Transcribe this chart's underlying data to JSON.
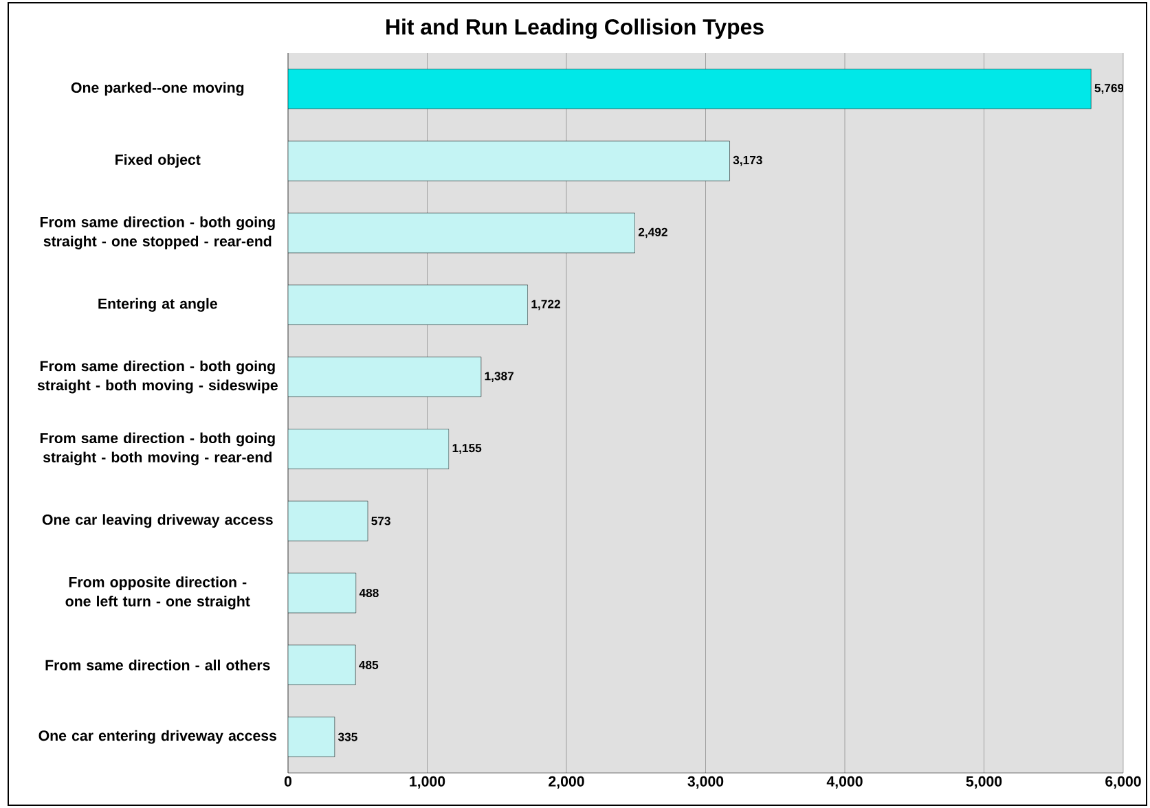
{
  "chart_data": {
    "type": "bar",
    "orientation": "horizontal",
    "title": "Hit and Run Leading Collision Types",
    "categories": [
      "One parked--one moving",
      "Fixed object",
      "From same direction - both going straight - one stopped - rear-end",
      "Entering at angle",
      "From same direction - both going straight - both moving - sideswipe",
      "From same direction - both going straight - both moving - rear-end",
      "One car leaving driveway access",
      "From opposite direction - one left turn - one straight",
      "From same direction - all others",
      "One car entering driveway access"
    ],
    "values": [
      5769,
      3173,
      2492,
      1722,
      1387,
      1155,
      573,
      488,
      485,
      335
    ],
    "value_labels": [
      "5,769",
      "3,173",
      "2,492",
      "1,722",
      "1,387",
      "1,155",
      "573",
      "488",
      "485",
      "335"
    ],
    "colors": [
      "#00e8e8",
      "#c4f4f4",
      "#c4f4f4",
      "#c4f4f4",
      "#c4f4f4",
      "#c4f4f4",
      "#c4f4f4",
      "#c4f4f4",
      "#c4f4f4",
      "#c4f4f4"
    ],
    "xlim": [
      0,
      6000
    ],
    "xticks": [
      0,
      {
        "value": 1000,
        "label": "1,000"
      },
      {
        "value": 2000,
        "label": "2,000"
      },
      {
        "value": 3000,
        "label": "3,000"
      },
      {
        "value": 4000,
        "label": "4,000"
      },
      {
        "value": 5000,
        "label": "5,000"
      },
      {
        "value": 6000,
        "label": "6,000"
      }
    ],
    "grid": "x"
  }
}
